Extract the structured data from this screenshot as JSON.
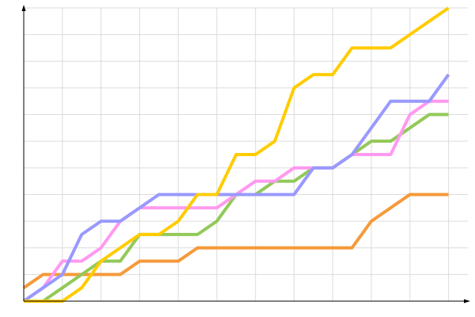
{
  "chart_data": {
    "type": "line",
    "x": [
      0,
      1,
      2,
      3,
      4,
      5,
      6,
      7,
      8,
      9,
      10,
      11,
      12,
      13,
      14,
      15,
      16,
      17,
      18,
      19,
      20,
      21,
      22
    ],
    "xlim": [
      0,
      23
    ],
    "ylim": [
      0,
      22
    ],
    "xticks": [
      0,
      2,
      4,
      6,
      8,
      10,
      12,
      14,
      16,
      18,
      20,
      22
    ],
    "yticks": [
      2,
      4,
      6,
      8,
      10,
      12,
      14,
      16,
      18,
      20,
      22
    ],
    "grid": true,
    "series": [
      {
        "color": "#f59a3b",
        "values": [
          1,
          2,
          2,
          2,
          2,
          2,
          3,
          3,
          3,
          4,
          4,
          4,
          4,
          4,
          4,
          4,
          4,
          4,
          6,
          7,
          8,
          8,
          8
        ]
      },
      {
        "color": "#92c958",
        "values": [
          0,
          0,
          1,
          2,
          3,
          3,
          5,
          5,
          5,
          5,
          6,
          8,
          8,
          9,
          9,
          10,
          10,
          11,
          12,
          12,
          13,
          14,
          14
        ]
      },
      {
        "color": "#ff99f0",
        "values": [
          0,
          1,
          3,
          3,
          4,
          6,
          7,
          7,
          7,
          7,
          7,
          8,
          9,
          9,
          10,
          10,
          10,
          11,
          11,
          11,
          14,
          15,
          15
        ]
      },
      {
        "color": "#9999ff",
        "values": [
          0,
          1,
          2,
          5,
          6,
          6,
          7,
          8,
          8,
          8,
          8,
          8,
          8,
          8,
          8,
          10,
          10,
          11,
          13,
          15,
          15,
          15,
          17
        ]
      },
      {
        "color": "#ffcc00",
        "values": [
          0,
          0,
          0,
          1,
          3,
          4,
          5,
          5,
          6,
          8,
          8,
          11,
          11,
          12,
          16,
          17,
          17,
          19,
          19,
          19,
          20,
          21,
          22
        ]
      }
    ]
  }
}
